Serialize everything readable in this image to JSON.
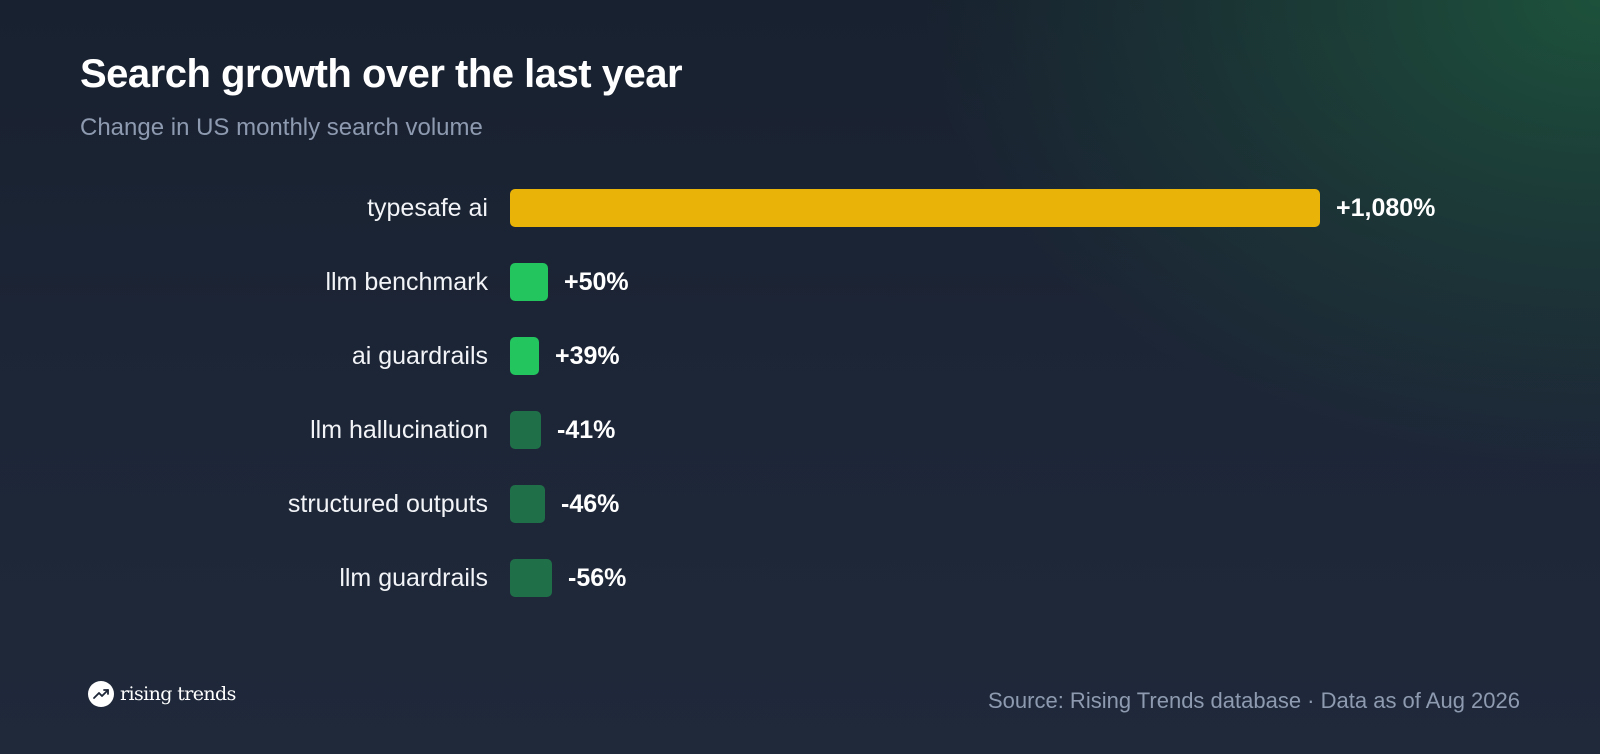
{
  "header": {
    "title": "Search growth over the last year",
    "subtitle": "Change in US monthly search volume"
  },
  "chart_data": {
    "type": "bar",
    "orientation": "horizontal",
    "title": "Search growth over the last year",
    "subtitle": "Change in US monthly search volume",
    "categories": [
      "typesafe ai",
      "llm benchmark",
      "ai guardrails",
      "llm hallucination",
      "structured outputs",
      "llm guardrails"
    ],
    "values": [
      1080,
      50,
      39,
      -41,
      -46,
      -56
    ],
    "value_labels": [
      "+1,080%",
      "+50%",
      "+39%",
      "-41%",
      "-46%",
      "-56%"
    ],
    "unit": "%",
    "grid": false,
    "legend": "none",
    "colors": {
      "highlight": "#eab308",
      "positive": "#22c55e",
      "negative": "#1f7049"
    },
    "bar_colors": [
      "#eab308",
      "#22c55e",
      "#22c55e",
      "#1f7049",
      "#1f7049",
      "#1f7049"
    ]
  },
  "footer": {
    "logo_text": "rising trends",
    "logo_icon": "trend-up-icon",
    "source": "Source: Rising Trends database · Data as of Aug 2026"
  }
}
